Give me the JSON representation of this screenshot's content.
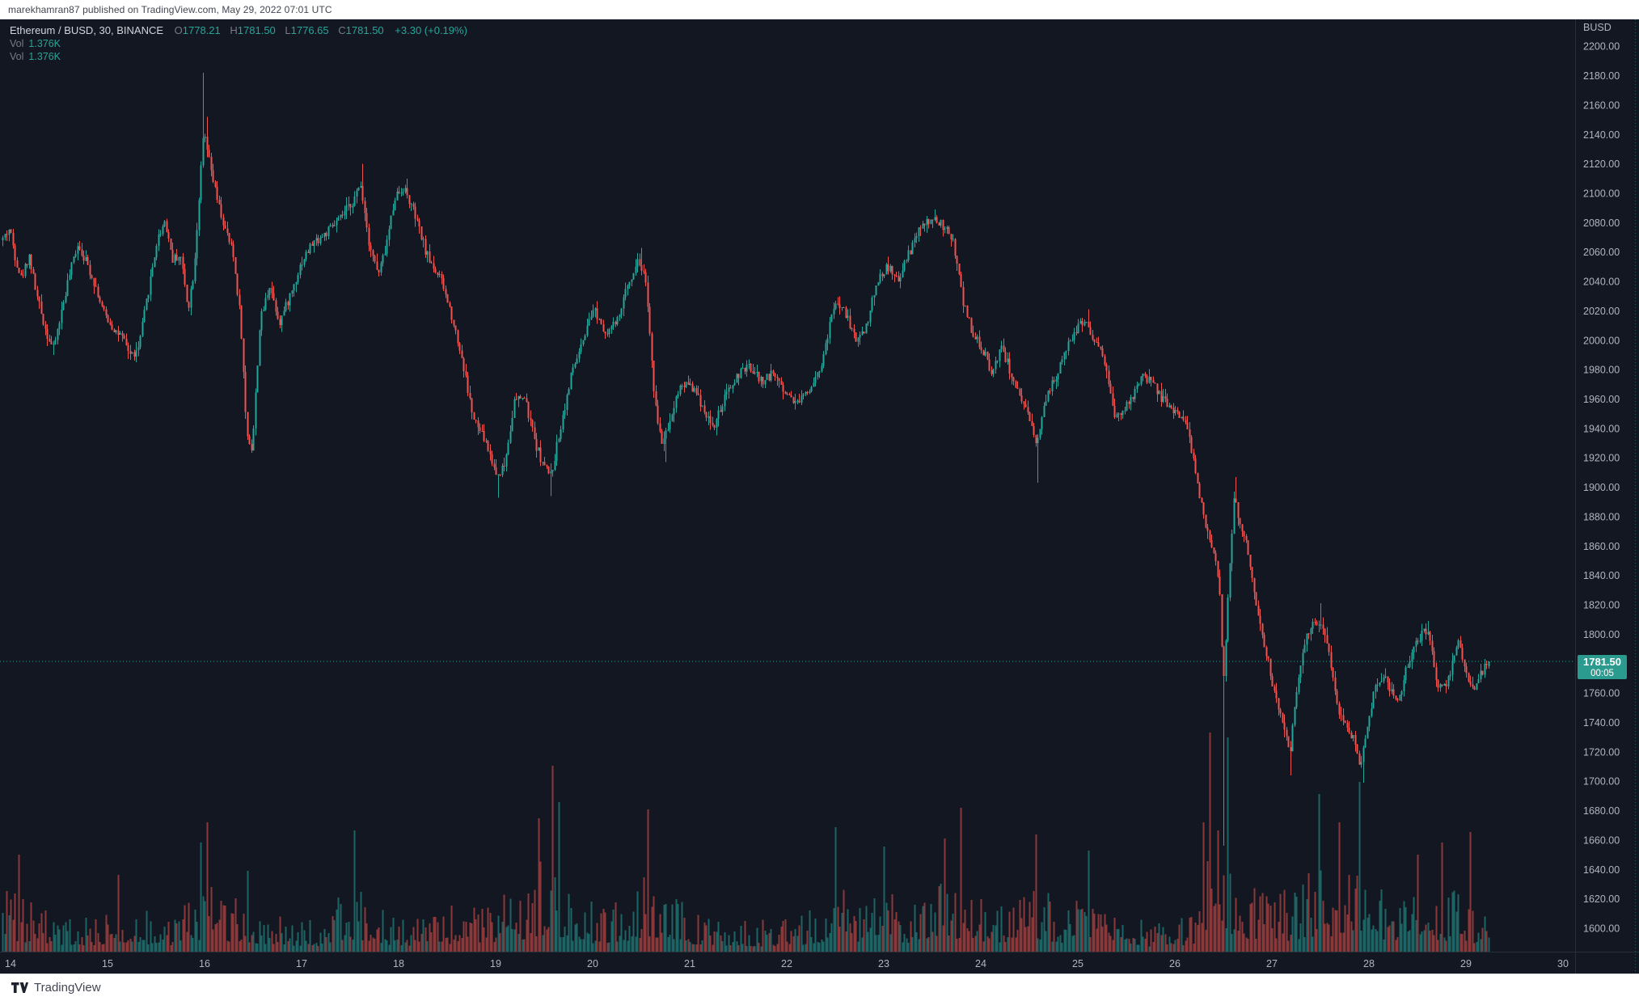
{
  "header": {
    "published_line": "marekhamran87 published on TradingView.com, May 29, 2022 07:01 UTC"
  },
  "footer": {
    "brand": "TradingView"
  },
  "legend": {
    "symbol_line": "Ethereum / BUSD, 30, BINANCE",
    "ohlc": [
      {
        "label": "O",
        "value": "1778.21"
      },
      {
        "label": "H",
        "value": "1781.50"
      },
      {
        "label": "L",
        "value": "1776.65"
      },
      {
        "label": "C",
        "value": "1781.50"
      }
    ],
    "change": "+3.30 (+0.19%)",
    "volume_rows": [
      {
        "label": "Vol",
        "value": "1.376K"
      },
      {
        "label": "Vol",
        "value": "1.376K"
      }
    ]
  },
  "price_axis": {
    "currency": "BUSD",
    "last_price": "1781.50",
    "countdown": "00:05",
    "tick_min": 1600,
    "tick_max": 2200,
    "tick_step": 20
  },
  "time_axis": {
    "labels": [
      "14",
      "15",
      "16",
      "17",
      "18",
      "19",
      "20",
      "21",
      "22",
      "23",
      "24",
      "25",
      "26",
      "27",
      "28",
      "29",
      "30"
    ],
    "first_day": 14
  },
  "colors": {
    "up": "#26a69a",
    "down": "#ef5350",
    "bg": "#131722",
    "axis_text": "#b2b5be",
    "border": "#2a2e39",
    "dotted_line": "#2ea79b",
    "badge_bg": "#2b9a8f",
    "vol_alpha": 0.55
  },
  "chart_data": {
    "type": "candlestick",
    "title": "Ethereum / BUSD, 30, BINANCE",
    "interval_minutes": 30,
    "last_bar": {
      "open": 1778.21,
      "high": 1781.5,
      "low": 1776.65,
      "close": 1781.5,
      "change": 3.3,
      "change_pct": 0.19,
      "volume": "1.376K"
    },
    "ylim": [
      1584,
      2218
    ],
    "xlabel_days": [
      14,
      15,
      16,
      17,
      18,
      19,
      20,
      21,
      22,
      23,
      24,
      25,
      26,
      27,
      28,
      29,
      30
    ],
    "domain_start": 13.92,
    "domain_end": 29.23,
    "bars_per_day": 48,
    "price_path": [
      [
        13.92,
        2068
      ],
      [
        14.0,
        2076
      ],
      [
        14.06,
        2056
      ],
      [
        14.12,
        2042
      ],
      [
        14.2,
        2058
      ],
      [
        14.28,
        2030
      ],
      [
        14.38,
        2005
      ],
      [
        14.45,
        1994
      ],
      [
        14.52,
        2015
      ],
      [
        14.6,
        2040
      ],
      [
        14.7,
        2066
      ],
      [
        14.78,
        2055
      ],
      [
        14.88,
        2038
      ],
      [
        14.96,
        2020
      ],
      [
        15.05,
        2010
      ],
      [
        15.15,
        2002
      ],
      [
        15.25,
        1990
      ],
      [
        15.32,
        1992
      ],
      [
        15.42,
        2030
      ],
      [
        15.52,
        2068
      ],
      [
        15.6,
        2082
      ],
      [
        15.68,
        2055
      ],
      [
        15.76,
        2058
      ],
      [
        15.84,
        2022
      ],
      [
        15.9,
        2048
      ],
      [
        15.96,
        2105
      ],
      [
        16.0,
        2142
      ],
      [
        16.06,
        2120
      ],
      [
        16.14,
        2095
      ],
      [
        16.22,
        2075
      ],
      [
        16.3,
        2060
      ],
      [
        16.38,
        2015
      ],
      [
        16.44,
        1938
      ],
      [
        16.5,
        1925
      ],
      [
        16.58,
        2012
      ],
      [
        16.68,
        2038
      ],
      [
        16.78,
        2012
      ],
      [
        16.9,
        2032
      ],
      [
        17.0,
        2052
      ],
      [
        17.12,
        2066
      ],
      [
        17.25,
        2072
      ],
      [
        17.4,
        2082
      ],
      [
        17.55,
        2096
      ],
      [
        17.62,
        2106
      ],
      [
        17.7,
        2068
      ],
      [
        17.8,
        2044
      ],
      [
        17.88,
        2064
      ],
      [
        17.97,
        2098
      ],
      [
        18.06,
        2104
      ],
      [
        18.16,
        2088
      ],
      [
        18.3,
        2058
      ],
      [
        18.45,
        2040
      ],
      [
        18.56,
        2016
      ],
      [
        18.66,
        1988
      ],
      [
        18.78,
        1946
      ],
      [
        18.9,
        1932
      ],
      [
        19.02,
        1908
      ],
      [
        19.1,
        1915
      ],
      [
        19.2,
        1958
      ],
      [
        19.3,
        1962
      ],
      [
        19.42,
        1930
      ],
      [
        19.5,
        1915
      ],
      [
        19.58,
        1908
      ],
      [
        19.68,
        1942
      ],
      [
        19.8,
        1980
      ],
      [
        19.92,
        2000
      ],
      [
        20.02,
        2022
      ],
      [
        20.14,
        2006
      ],
      [
        20.26,
        2012
      ],
      [
        20.38,
        2040
      ],
      [
        20.48,
        2055
      ],
      [
        20.56,
        2040
      ],
      [
        20.64,
        1962
      ],
      [
        20.72,
        1930
      ],
      [
        20.8,
        1945
      ],
      [
        20.9,
        1968
      ],
      [
        21.0,
        1972
      ],
      [
        21.12,
        1958
      ],
      [
        21.25,
        1940
      ],
      [
        21.38,
        1962
      ],
      [
        21.5,
        1976
      ],
      [
        21.62,
        1982
      ],
      [
        21.75,
        1972
      ],
      [
        21.88,
        1978
      ],
      [
        22.0,
        1964
      ],
      [
        22.12,
        1958
      ],
      [
        22.25,
        1968
      ],
      [
        22.38,
        1986
      ],
      [
        22.5,
        2026
      ],
      [
        22.62,
        2018
      ],
      [
        22.72,
        2000
      ],
      [
        22.82,
        2008
      ],
      [
        22.95,
        2042
      ],
      [
        23.05,
        2050
      ],
      [
        23.15,
        2040
      ],
      [
        23.25,
        2056
      ],
      [
        23.38,
        2076
      ],
      [
        23.5,
        2082
      ],
      [
        23.62,
        2078
      ],
      [
        23.72,
        2068
      ],
      [
        23.82,
        2028
      ],
      [
        23.92,
        2005
      ],
      [
        24.02,
        1995
      ],
      [
        24.12,
        1978
      ],
      [
        24.22,
        1996
      ],
      [
        24.32,
        1978
      ],
      [
        24.42,
        1958
      ],
      [
        24.5,
        1948
      ],
      [
        24.58,
        1928
      ],
      [
        24.66,
        1958
      ],
      [
        24.76,
        1972
      ],
      [
        24.88,
        1992
      ],
      [
        25.0,
        2008
      ],
      [
        25.08,
        2014
      ],
      [
        25.18,
        2000
      ],
      [
        25.28,
        1988
      ],
      [
        25.38,
        1948
      ],
      [
        25.48,
        1952
      ],
      [
        25.58,
        1962
      ],
      [
        25.68,
        1976
      ],
      [
        25.78,
        1970
      ],
      [
        25.88,
        1960
      ],
      [
        26.0,
        1952
      ],
      [
        26.1,
        1948
      ],
      [
        26.2,
        1920
      ],
      [
        26.28,
        1888
      ],
      [
        26.35,
        1868
      ],
      [
        26.42,
        1856
      ],
      [
        26.47,
        1832
      ],
      [
        26.51,
        1765
      ],
      [
        26.55,
        1818
      ],
      [
        26.62,
        1892
      ],
      [
        26.68,
        1875
      ],
      [
        26.75,
        1860
      ],
      [
        26.82,
        1832
      ],
      [
        26.9,
        1802
      ],
      [
        26.98,
        1778
      ],
      [
        27.06,
        1752
      ],
      [
        27.14,
        1735
      ],
      [
        27.2,
        1722
      ],
      [
        27.28,
        1772
      ],
      [
        27.36,
        1798
      ],
      [
        27.45,
        1808
      ],
      [
        27.52,
        1810
      ],
      [
        27.6,
        1788
      ],
      [
        27.68,
        1752
      ],
      [
        27.76,
        1738
      ],
      [
        27.84,
        1730
      ],
      [
        27.92,
        1712
      ],
      [
        28.0,
        1742
      ],
      [
        28.08,
        1766
      ],
      [
        28.16,
        1772
      ],
      [
        28.24,
        1762
      ],
      [
        28.32,
        1756
      ],
      [
        28.4,
        1778
      ],
      [
        28.48,
        1792
      ],
      [
        28.56,
        1800
      ],
      [
        28.62,
        1803
      ],
      [
        28.7,
        1768
      ],
      [
        28.78,
        1762
      ],
      [
        28.86,
        1778
      ],
      [
        28.94,
        1796
      ],
      [
        29.02,
        1770
      ],
      [
        29.1,
        1765
      ],
      [
        29.18,
        1775
      ],
      [
        29.23,
        1781.5
      ]
    ],
    "price_spikes": [
      [
        14.45,
        "low",
        1990
      ],
      [
        15.98,
        "high",
        2182
      ],
      [
        16.02,
        "high",
        2152
      ],
      [
        17.62,
        "high",
        2120
      ],
      [
        18.08,
        "high",
        2110
      ],
      [
        19.03,
        "low",
        1893
      ],
      [
        19.56,
        "low",
        1894
      ],
      [
        20.5,
        "high",
        2063
      ],
      [
        20.76,
        "low",
        1917
      ],
      [
        23.52,
        "high",
        2089
      ],
      [
        24.58,
        "low",
        1903
      ],
      [
        25.1,
        "high",
        2021
      ],
      [
        26.51,
        "low",
        1656
      ],
      [
        26.54,
        "high",
        1825
      ],
      [
        26.63,
        "high",
        1907
      ],
      [
        27.2,
        "low",
        1704
      ],
      [
        27.5,
        "high",
        1821
      ],
      [
        27.94,
        "low",
        1699
      ],
      [
        28.61,
        "high",
        1809
      ]
    ],
    "volume_envelope": [
      [
        13.9,
        110
      ],
      [
        14.2,
        90
      ],
      [
        14.5,
        65
      ],
      [
        14.8,
        60
      ],
      [
        15.05,
        85
      ],
      [
        15.3,
        80
      ],
      [
        15.6,
        55
      ],
      [
        15.9,
        115
      ],
      [
        16.1,
        120
      ],
      [
        16.35,
        90
      ],
      [
        16.6,
        80
      ],
      [
        16.9,
        60
      ],
      [
        17.2,
        55
      ],
      [
        17.5,
        120
      ],
      [
        17.8,
        75
      ],
      [
        18.1,
        60
      ],
      [
        18.4,
        70
      ],
      [
        18.7,
        90
      ],
      [
        19.0,
        100
      ],
      [
        19.3,
        120
      ],
      [
        19.55,
        180
      ],
      [
        19.75,
        120
      ],
      [
        20.0,
        85
      ],
      [
        20.3,
        95
      ],
      [
        20.55,
        140
      ],
      [
        20.8,
        100
      ],
      [
        21.1,
        65
      ],
      [
        21.5,
        55
      ],
      [
        21.9,
        55
      ],
      [
        22.2,
        65
      ],
      [
        22.5,
        120
      ],
      [
        22.8,
        85
      ],
      [
        23.05,
        110
      ],
      [
        23.3,
        85
      ],
      [
        23.6,
        120
      ],
      [
        23.85,
        140
      ],
      [
        24.1,
        90
      ],
      [
        24.35,
        100
      ],
      [
        24.6,
        120
      ],
      [
        24.85,
        85
      ],
      [
        25.1,
        105
      ],
      [
        25.4,
        75
      ],
      [
        25.7,
        55
      ],
      [
        26.0,
        50
      ],
      [
        26.2,
        85
      ],
      [
        26.4,
        200
      ],
      [
        26.6,
        180
      ],
      [
        26.8,
        115
      ],
      [
        27.0,
        100
      ],
      [
        27.2,
        110
      ],
      [
        27.45,
        150
      ],
      [
        27.7,
        140
      ],
      [
        27.95,
        150
      ],
      [
        28.2,
        100
      ],
      [
        28.45,
        95
      ],
      [
        28.7,
        110
      ],
      [
        29.0,
        105
      ],
      [
        29.25,
        55
      ]
    ],
    "volume_spikes": [
      [
        14.08,
        120,
        "down"
      ],
      [
        15.1,
        95,
        "down"
      ],
      [
        15.96,
        135,
        "up"
      ],
      [
        16.03,
        160,
        "down"
      ],
      [
        16.45,
        100,
        "up"
      ],
      [
        17.55,
        150,
        "up"
      ],
      [
        19.45,
        165,
        "down"
      ],
      [
        19.58,
        230,
        "down"
      ],
      [
        19.65,
        185,
        "up"
      ],
      [
        20.56,
        176,
        "down"
      ],
      [
        22.5,
        154,
        "up"
      ],
      [
        23.0,
        130,
        "up"
      ],
      [
        23.62,
        140,
        "down"
      ],
      [
        23.8,
        178,
        "down"
      ],
      [
        24.57,
        145,
        "down"
      ],
      [
        25.1,
        125,
        "up"
      ],
      [
        26.3,
        160,
        "down"
      ],
      [
        26.35,
        271,
        "down"
      ],
      [
        26.45,
        150,
        "down"
      ],
      [
        26.55,
        265,
        "up"
      ],
      [
        27.48,
        195,
        "up"
      ],
      [
        27.7,
        160,
        "down"
      ],
      [
        27.9,
        210,
        "up"
      ],
      [
        28.5,
        120,
        "down"
      ],
      [
        28.75,
        135,
        "down"
      ],
      [
        29.04,
        148,
        "down"
      ]
    ],
    "current_price": 1781.5
  }
}
